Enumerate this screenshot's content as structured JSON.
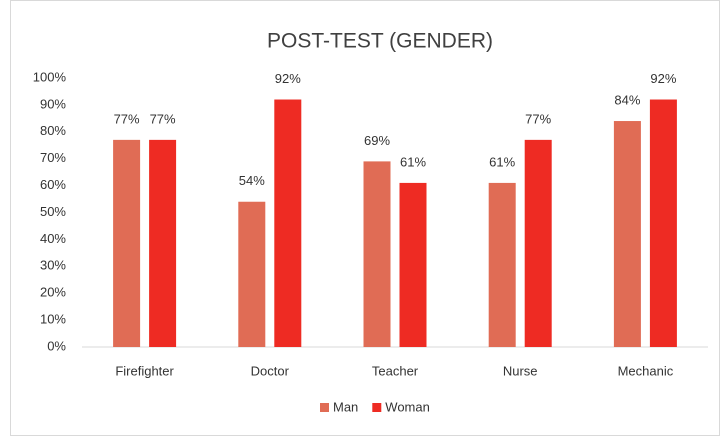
{
  "chart_data": {
    "type": "bar",
    "title": "POST-TEST (GENDER)",
    "categories": [
      "Firefighter",
      "Doctor",
      "Teacher",
      "Nurse",
      "Mechanic"
    ],
    "series": [
      {
        "name": "Man",
        "color": "#e06c55",
        "values": [
          77,
          54,
          69,
          61,
          84
        ],
        "value_labels": [
          "77%",
          "54%",
          "69%",
          "61%",
          "84%"
        ]
      },
      {
        "name": "Woman",
        "color": "#ee2b23",
        "values": [
          77,
          92,
          61,
          77,
          92
        ],
        "value_labels": [
          "77%",
          "92%",
          "61%",
          "77%",
          "92%"
        ]
      }
    ],
    "ylim": [
      0,
      100
    ],
    "yticks": [
      {
        "value": 0,
        "label": "0%"
      },
      {
        "value": 10,
        "label": "10%"
      },
      {
        "value": 20,
        "label": "20%"
      },
      {
        "value": 30,
        "label": "30%"
      },
      {
        "value": 40,
        "label": "40%"
      },
      {
        "value": 50,
        "label": "50%"
      },
      {
        "value": 60,
        "label": "60%"
      },
      {
        "value": 70,
        "label": "70%"
      },
      {
        "value": 80,
        "label": "80%"
      },
      {
        "value": 90,
        "label": "90%"
      },
      {
        "value": 100,
        "label": "100%"
      }
    ],
    "grid": false,
    "legend": "bottom"
  }
}
